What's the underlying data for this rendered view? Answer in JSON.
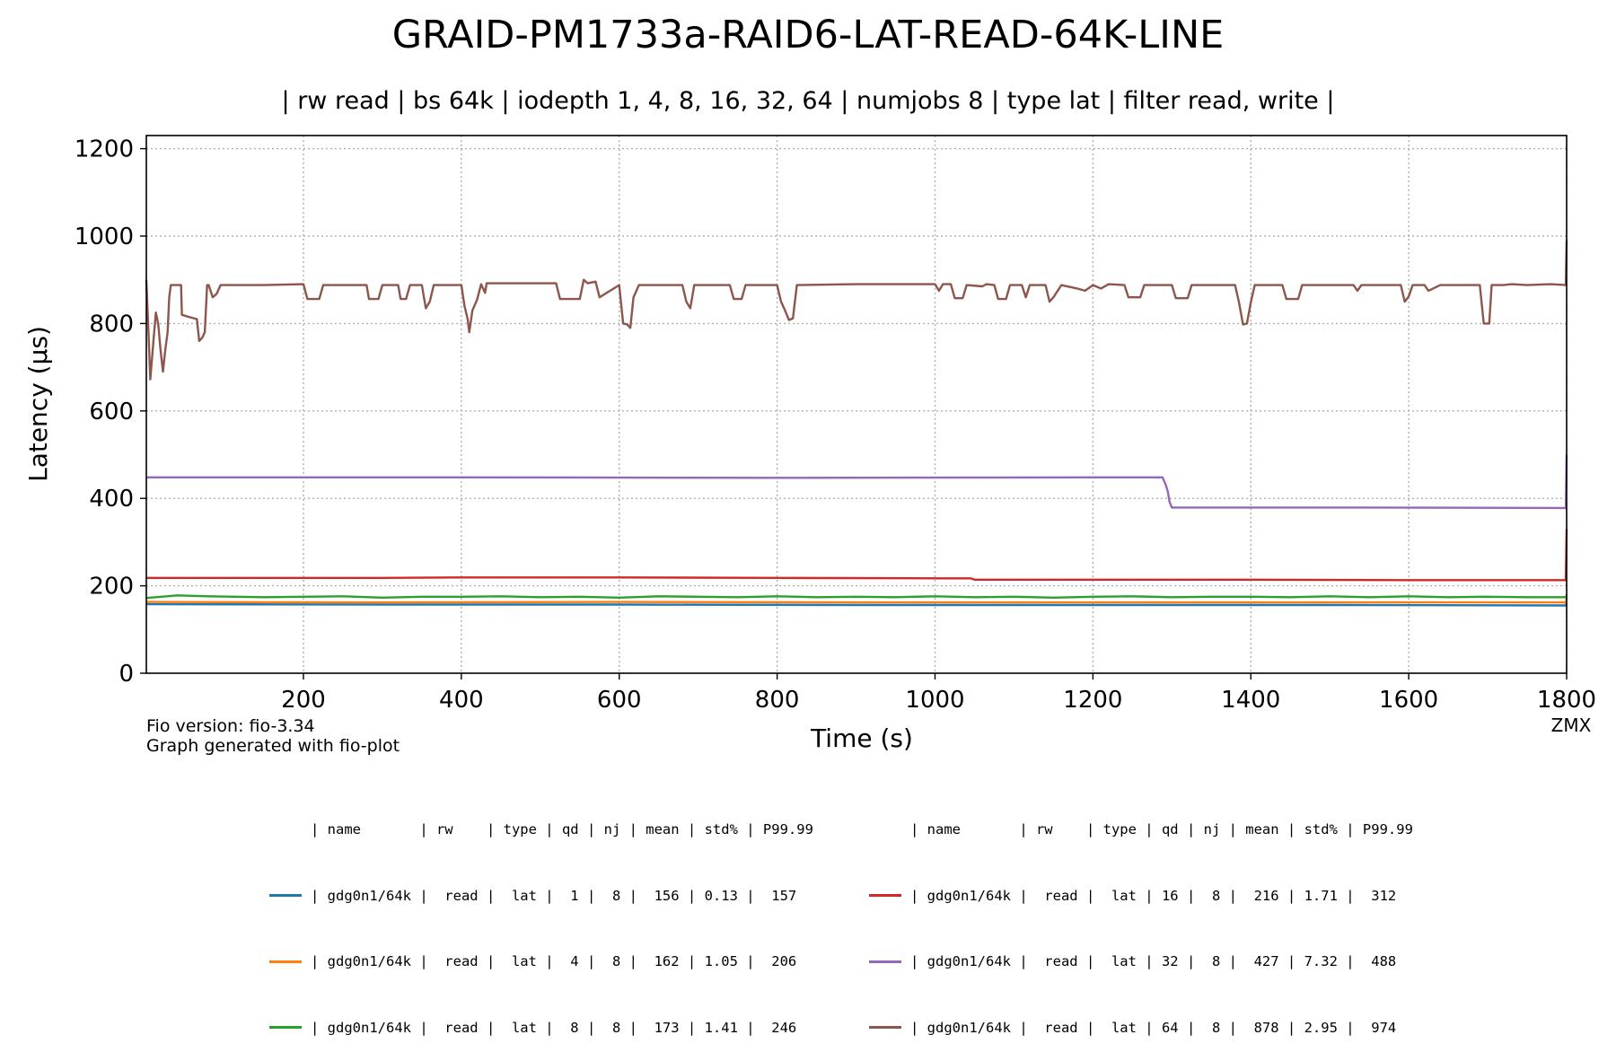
{
  "chart_data": {
    "type": "line",
    "title": "GRAID-PM1733a-RAID6-LAT-READ-64K-LINE",
    "subtitle": "| rw read | bs 64k | iodepth 1, 4, 8, 16, 32, 64 | numjobs 8 | type lat | filter read, write |",
    "xlabel": "Time (s)",
    "ylabel": "Latency (µs)",
    "xlim": [
      1,
      1800
    ],
    "ylim": [
      0,
      1230
    ],
    "x_ticks": [
      200,
      400,
      600,
      800,
      1000,
      1200,
      1400,
      1600,
      1800
    ],
    "y_ticks": [
      0,
      200,
      400,
      600,
      800,
      1000,
      1200
    ],
    "grid": true,
    "series": [
      {
        "name": "gdg0n1/64k qd 1",
        "color": "#1f77b4",
        "points": [
          [
            1,
            158
          ],
          [
            300,
            157
          ],
          [
            600,
            157
          ],
          [
            900,
            156
          ],
          [
            1200,
            156
          ],
          [
            1500,
            156
          ],
          [
            1799,
            155
          ],
          [
            1800,
            160
          ]
        ]
      },
      {
        "name": "gdg0n1/64k qd 4",
        "color": "#ff7f0e",
        "points": [
          [
            1,
            163
          ],
          [
            300,
            162
          ],
          [
            600,
            163
          ],
          [
            900,
            162
          ],
          [
            1200,
            162
          ],
          [
            1500,
            162
          ],
          [
            1799,
            162
          ],
          [
            1800,
            170
          ]
        ]
      },
      {
        "name": "gdg0n1/64k qd 8",
        "color": "#2ca02c",
        "points": [
          [
            1,
            172
          ],
          [
            20,
            175
          ],
          [
            40,
            178
          ],
          [
            80,
            176
          ],
          [
            150,
            174
          ],
          [
            200,
            175
          ],
          [
            250,
            176
          ],
          [
            300,
            173
          ],
          [
            350,
            175
          ],
          [
            400,
            175
          ],
          [
            450,
            176
          ],
          [
            500,
            174
          ],
          [
            550,
            175
          ],
          [
            600,
            173
          ],
          [
            650,
            176
          ],
          [
            700,
            175
          ],
          [
            750,
            174
          ],
          [
            800,
            176
          ],
          [
            850,
            174
          ],
          [
            900,
            175
          ],
          [
            950,
            174
          ],
          [
            1000,
            176
          ],
          [
            1050,
            174
          ],
          [
            1100,
            175
          ],
          [
            1150,
            173
          ],
          [
            1200,
            175
          ],
          [
            1250,
            176
          ],
          [
            1300,
            174
          ],
          [
            1350,
            175
          ],
          [
            1400,
            175
          ],
          [
            1450,
            174
          ],
          [
            1500,
            176
          ],
          [
            1550,
            174
          ],
          [
            1600,
            176
          ],
          [
            1650,
            174
          ],
          [
            1700,
            175
          ],
          [
            1750,
            174
          ],
          [
            1799,
            174
          ],
          [
            1800,
            178
          ]
        ]
      },
      {
        "name": "gdg0n1/64k qd 16",
        "color": "#d62728",
        "points": [
          [
            1,
            218
          ],
          [
            200,
            218
          ],
          [
            300,
            218
          ],
          [
            400,
            219
          ],
          [
            600,
            219
          ],
          [
            800,
            218
          ],
          [
            1000,
            217
          ],
          [
            1045,
            217
          ],
          [
            1050,
            214
          ],
          [
            1200,
            214
          ],
          [
            1400,
            214
          ],
          [
            1600,
            213
          ],
          [
            1799,
            213
          ],
          [
            1800,
            330
          ]
        ]
      },
      {
        "name": "gdg0n1/64k qd 32",
        "color": "#9467bd",
        "points": [
          [
            1,
            448
          ],
          [
            400,
            448
          ],
          [
            800,
            447
          ],
          [
            1200,
            448
          ],
          [
            1288,
            448
          ],
          [
            1292,
            432
          ],
          [
            1295,
            415
          ],
          [
            1297,
            392
          ],
          [
            1300,
            379
          ],
          [
            1500,
            379
          ],
          [
            1799,
            378
          ],
          [
            1800,
            500
          ]
        ]
      },
      {
        "name": "gdg0n1/64k qd 64",
        "color": "#8c564b",
        "points": [
          [
            1,
            900
          ],
          [
            4,
            770
          ],
          [
            6,
            672
          ],
          [
            10,
            760
          ],
          [
            13,
            825
          ],
          [
            16,
            800
          ],
          [
            19,
            740
          ],
          [
            22,
            690
          ],
          [
            25,
            740
          ],
          [
            28,
            780
          ],
          [
            30,
            860
          ],
          [
            32,
            888
          ],
          [
            45,
            888
          ],
          [
            46,
            820
          ],
          [
            55,
            815
          ],
          [
            65,
            810
          ],
          [
            68,
            760
          ],
          [
            72,
            768
          ],
          [
            75,
            780
          ],
          [
            78,
            888
          ],
          [
            80,
            888
          ],
          [
            85,
            860
          ],
          [
            90,
            868
          ],
          [
            95,
            888
          ],
          [
            150,
            888
          ],
          [
            200,
            890
          ],
          [
            205,
            856
          ],
          [
            220,
            856
          ],
          [
            225,
            888
          ],
          [
            280,
            888
          ],
          [
            283,
            856
          ],
          [
            295,
            856
          ],
          [
            300,
            888
          ],
          [
            320,
            888
          ],
          [
            323,
            856
          ],
          [
            330,
            856
          ],
          [
            335,
            888
          ],
          [
            350,
            888
          ],
          [
            355,
            835
          ],
          [
            360,
            850
          ],
          [
            365,
            888
          ],
          [
            400,
            888
          ],
          [
            404,
            840
          ],
          [
            408,
            810
          ],
          [
            410,
            780
          ],
          [
            414,
            830
          ],
          [
            420,
            855
          ],
          [
            425,
            890
          ],
          [
            430,
            870
          ],
          [
            432,
            892
          ],
          [
            500,
            892
          ],
          [
            520,
            892
          ],
          [
            525,
            856
          ],
          [
            550,
            856
          ],
          [
            555,
            900
          ],
          [
            560,
            892
          ],
          [
            570,
            896
          ],
          [
            575,
            860
          ],
          [
            600,
            888
          ],
          [
            605,
            800
          ],
          [
            610,
            798
          ],
          [
            614,
            790
          ],
          [
            618,
            860
          ],
          [
            625,
            888
          ],
          [
            680,
            888
          ],
          [
            685,
            850
          ],
          [
            690,
            835
          ],
          [
            695,
            888
          ],
          [
            740,
            888
          ],
          [
            745,
            856
          ],
          [
            755,
            856
          ],
          [
            760,
            888
          ],
          [
            800,
            888
          ],
          [
            805,
            850
          ],
          [
            810,
            830
          ],
          [
            815,
            808
          ],
          [
            820,
            812
          ],
          [
            825,
            888
          ],
          [
            900,
            890
          ],
          [
            1000,
            890
          ],
          [
            1005,
            875
          ],
          [
            1010,
            890
          ],
          [
            1020,
            890
          ],
          [
            1025,
            858
          ],
          [
            1035,
            858
          ],
          [
            1040,
            888
          ],
          [
            1060,
            885
          ],
          [
            1065,
            890
          ],
          [
            1075,
            888
          ],
          [
            1080,
            856
          ],
          [
            1090,
            856
          ],
          [
            1095,
            888
          ],
          [
            1110,
            888
          ],
          [
            1115,
            860
          ],
          [
            1120,
            888
          ],
          [
            1140,
            888
          ],
          [
            1145,
            850
          ],
          [
            1150,
            860
          ],
          [
            1160,
            888
          ],
          [
            1180,
            880
          ],
          [
            1190,
            875
          ],
          [
            1200,
            888
          ],
          [
            1210,
            880
          ],
          [
            1220,
            890
          ],
          [
            1240,
            888
          ],
          [
            1245,
            860
          ],
          [
            1260,
            860
          ],
          [
            1265,
            888
          ],
          [
            1300,
            888
          ],
          [
            1305,
            858
          ],
          [
            1320,
            858
          ],
          [
            1325,
            888
          ],
          [
            1380,
            888
          ],
          [
            1385,
            848
          ],
          [
            1390,
            798
          ],
          [
            1395,
            800
          ],
          [
            1400,
            848
          ],
          [
            1405,
            888
          ],
          [
            1440,
            888
          ],
          [
            1445,
            856
          ],
          [
            1460,
            856
          ],
          [
            1465,
            888
          ],
          [
            1530,
            888
          ],
          [
            1535,
            875
          ],
          [
            1540,
            888
          ],
          [
            1590,
            888
          ],
          [
            1595,
            850
          ],
          [
            1600,
            862
          ],
          [
            1605,
            888
          ],
          [
            1620,
            888
          ],
          [
            1625,
            875
          ],
          [
            1640,
            888
          ],
          [
            1680,
            888
          ],
          [
            1690,
            888
          ],
          [
            1695,
            800
          ],
          [
            1702,
            800
          ],
          [
            1705,
            888
          ],
          [
            1720,
            888
          ],
          [
            1730,
            890
          ],
          [
            1750,
            888
          ],
          [
            1780,
            890
          ],
          [
            1799,
            888
          ],
          [
            1800,
            990
          ]
        ]
      }
    ]
  },
  "footer": {
    "left_line1": "Fio version: fio-3.34",
    "left_line2": "Graph generated with fio-plot",
    "right": "ZMX"
  },
  "legend": {
    "header": "| name       | rw    | type | qd | nj | mean | std% | P99.99",
    "rows": [
      {
        "color": "#1f77b4",
        "text": "| gdg0n1/64k |  read |  lat |  1 |  8 |  156 | 0.13 |  157"
      },
      {
        "color": "#ff7f0e",
        "text": "| gdg0n1/64k |  read |  lat |  4 |  8 |  162 | 1.05 |  206"
      },
      {
        "color": "#2ca02c",
        "text": "| gdg0n1/64k |  read |  lat |  8 |  8 |  173 | 1.41 |  246"
      },
      {
        "color": "#d62728",
        "text": "| gdg0n1/64k |  read |  lat | 16 |  8 |  216 | 1.71 |  312"
      },
      {
        "color": "#9467bd",
        "text": "| gdg0n1/64k |  read |  lat | 32 |  8 |  427 | 7.32 |  488"
      },
      {
        "color": "#8c564b",
        "text": "| gdg0n1/64k |  read |  lat | 64 |  8 |  878 | 2.95 |  974"
      }
    ]
  }
}
